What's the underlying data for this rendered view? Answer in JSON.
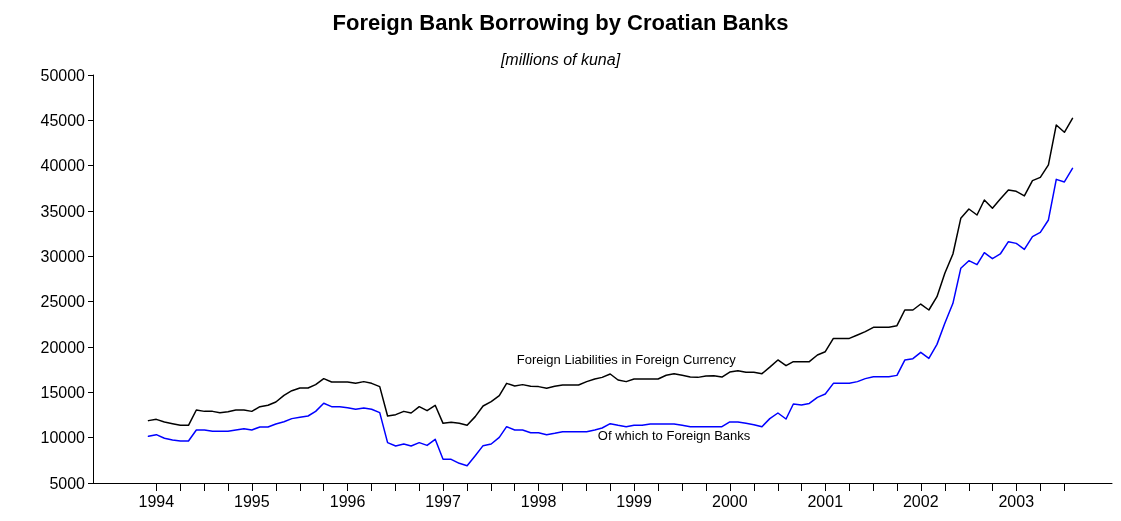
{
  "chart_data": {
    "type": "line",
    "title": "Foreign Bank Borrowing by Croatian Banks",
    "subtitle": "[millions of kuna]",
    "x": [
      "1994-06",
      "1994-07",
      "1994-08",
      "1994-09",
      "1994-10",
      "1994-11",
      "1994-12",
      "1995-01",
      "1995-02",
      "1995-03",
      "1995-04",
      "1995-05",
      "1995-06",
      "1995-07",
      "1995-08",
      "1995-09",
      "1995-10",
      "1995-11",
      "1995-12",
      "1996-01",
      "1996-02",
      "1996-03",
      "1996-04",
      "1996-05",
      "1996-06",
      "1996-07",
      "1996-08",
      "1996-09",
      "1996-10",
      "1996-11",
      "1996-12",
      "1997-01",
      "1997-02",
      "1997-03",
      "1997-04",
      "1997-05",
      "1997-06",
      "1997-07",
      "1997-08",
      "1997-09",
      "1997-10",
      "1997-11",
      "1997-12",
      "1998-01",
      "1998-02",
      "1998-03",
      "1998-04",
      "1998-05",
      "1998-06",
      "1998-07",
      "1998-08",
      "1998-09",
      "1998-10",
      "1998-11",
      "1998-12",
      "1999-01",
      "1999-02",
      "1999-03",
      "1999-04",
      "1999-05",
      "1999-06",
      "1999-07",
      "1999-08",
      "1999-09",
      "1999-10",
      "1999-11",
      "1999-12",
      "2000-01",
      "2000-02",
      "2000-03",
      "2000-04",
      "2000-05",
      "2000-06",
      "2000-07",
      "2000-08",
      "2000-09",
      "2000-10",
      "2000-11",
      "2000-12",
      "2001-01",
      "2001-02",
      "2001-03",
      "2001-04",
      "2001-05",
      "2001-06",
      "2001-07",
      "2001-08",
      "2001-09",
      "2001-10",
      "2001-11",
      "2001-12",
      "2002-01",
      "2002-02",
      "2002-03",
      "2002-04",
      "2002-05",
      "2002-06",
      "2002-07",
      "2002-08",
      "2002-09",
      "2002-10",
      "2002-11",
      "2002-12",
      "2003-01",
      "2003-02",
      "2003-03",
      "2003-04",
      "2003-05",
      "2003-06",
      "2003-07",
      "2003-08",
      "2003-09",
      "2003-10",
      "2003-11",
      "2003-12",
      "2004-01",
      "2004-02"
    ],
    "series": [
      {
        "name": "Foreign Liabilities in Foreign Currency",
        "color": "#000000",
        "values": [
          11880,
          12020,
          11730,
          11540,
          11360,
          11360,
          13050,
          12900,
          12900,
          12760,
          12870,
          13050,
          13050,
          12900,
          13420,
          13570,
          13930,
          14670,
          15180,
          15480,
          15480,
          15850,
          16510,
          16140,
          16140,
          16140,
          15990,
          16180,
          15990,
          15630,
          12390,
          12540,
          12900,
          12720,
          13420,
          12980,
          13570,
          11580,
          11690,
          11580,
          11360,
          12320,
          13490,
          13970,
          14630,
          15990,
          15700,
          15850,
          15660,
          15630,
          15440,
          15660,
          15810,
          15810,
          15810,
          16180,
          16470,
          16650,
          17020,
          16360,
          16180,
          16470,
          16470,
          16470,
          16470,
          16880,
          17060,
          16880,
          16690,
          16650,
          16800,
          16840,
          16690,
          17240,
          17390,
          17210,
          17210,
          17060,
          17780,
          18570,
          17940,
          18380,
          18380,
          18380,
          19120,
          19480,
          20950,
          20950,
          20950,
          21320,
          21690,
          22170,
          22170,
          22170,
          22350,
          24080,
          24080,
          24740,
          24080,
          25550,
          28130,
          30260,
          34190,
          35220,
          34560,
          36210,
          35300,
          36330,
          37320,
          37170,
          36660,
          38350,
          38710,
          40080,
          44490,
          43680,
          45220
        ]
      },
      {
        "name": "Of which to Foreign Banks",
        "color": "#0000ff",
        "values": [
          10150,
          10330,
          9930,
          9740,
          9630,
          9630,
          10850,
          10850,
          10700,
          10700,
          10700,
          10850,
          10990,
          10850,
          11180,
          11180,
          11510,
          11760,
          12100,
          12240,
          12390,
          12900,
          13790,
          13420,
          13420,
          13310,
          13130,
          13270,
          13130,
          12760,
          9450,
          9080,
          9300,
          9080,
          9450,
          9150,
          9820,
          7610,
          7610,
          7170,
          6910,
          8010,
          9120,
          9300,
          10040,
          11210,
          10850,
          10850,
          10550,
          10550,
          10330,
          10480,
          10660,
          10660,
          10660,
          10660,
          10850,
          11070,
          11540,
          11360,
          11210,
          11360,
          11360,
          11510,
          11510,
          11510,
          11510,
          11360,
          11210,
          11210,
          11210,
          11210,
          11210,
          11730,
          11730,
          11580,
          11430,
          11210,
          12100,
          12720,
          12060,
          13710,
          13600,
          13780,
          14450,
          14810,
          15990,
          15990,
          15990,
          16180,
          16510,
          16730,
          16730,
          16730,
          16870,
          18560,
          18710,
          19410,
          18750,
          20290,
          22610,
          24820,
          28680,
          29520,
          29080,
          30400,
          29740,
          30260,
          31620,
          31430,
          30770,
          32170,
          32650,
          34010,
          38490,
          38200,
          39710
        ]
      }
    ],
    "xlim": [
      "1993-11",
      "2004-07"
    ],
    "xticks": [
      {
        "value": "1994-07",
        "label": "1994"
      },
      {
        "value": "1994-10",
        "label": null
      },
      {
        "value": "1995-01",
        "label": null
      },
      {
        "value": "1995-04",
        "label": null
      },
      {
        "value": "1995-07",
        "label": "1995"
      },
      {
        "value": "1995-10",
        "label": null
      },
      {
        "value": "1996-01",
        "label": null
      },
      {
        "value": "1996-04",
        "label": null
      },
      {
        "value": "1996-07",
        "label": "1996"
      },
      {
        "value": "1996-10",
        "label": null
      },
      {
        "value": "1997-01",
        "label": null
      },
      {
        "value": "1997-04",
        "label": null
      },
      {
        "value": "1997-07",
        "label": "1997"
      },
      {
        "value": "1997-10",
        "label": null
      },
      {
        "value": "1998-01",
        "label": null
      },
      {
        "value": "1998-04",
        "label": null
      },
      {
        "value": "1998-07",
        "label": "1998"
      },
      {
        "value": "1998-10",
        "label": null
      },
      {
        "value": "1999-01",
        "label": null
      },
      {
        "value": "1999-04",
        "label": null
      },
      {
        "value": "1999-07",
        "label": "1999"
      },
      {
        "value": "1999-10",
        "label": null
      },
      {
        "value": "2000-01",
        "label": null
      },
      {
        "value": "2000-04",
        "label": null
      },
      {
        "value": "2000-07",
        "label": "2000"
      },
      {
        "value": "2000-10",
        "label": null
      },
      {
        "value": "2001-01",
        "label": null
      },
      {
        "value": "2001-04",
        "label": null
      },
      {
        "value": "2001-07",
        "label": "2001"
      },
      {
        "value": "2001-10",
        "label": null
      },
      {
        "value": "2002-01",
        "label": null
      },
      {
        "value": "2002-04",
        "label": null
      },
      {
        "value": "2002-07",
        "label": "2002"
      },
      {
        "value": "2002-10",
        "label": null
      },
      {
        "value": "2003-01",
        "label": null
      },
      {
        "value": "2003-04",
        "label": null
      },
      {
        "value": "2003-07",
        "label": "2003"
      },
      {
        "value": "2003-10",
        "label": null
      },
      {
        "value": "2004-01",
        "label": null
      }
    ],
    "ylim": [
      5000,
      50000
    ],
    "yticks": [
      5000,
      10000,
      15000,
      20000,
      25000,
      30000,
      35000,
      40000,
      45000,
      50000
    ],
    "grid": false,
    "legend": false,
    "marker": "none",
    "line_style": "solid"
  }
}
